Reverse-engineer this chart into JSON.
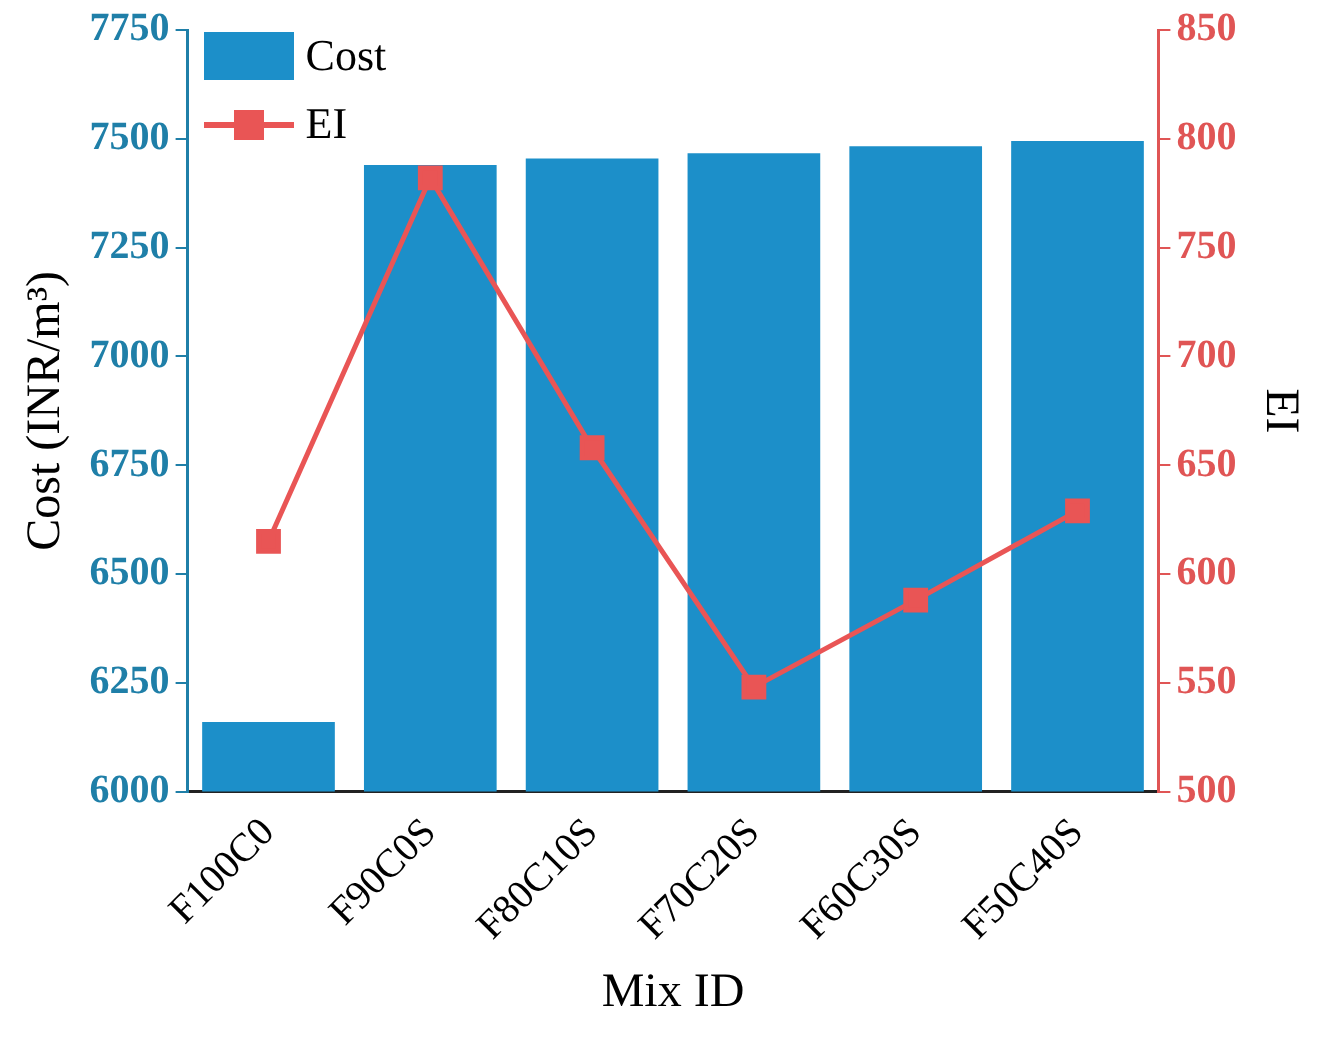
{
  "chart_data": {
    "type": "bar",
    "xlabel": "Mix ID",
    "ylabel": "Cost (INR/m³)",
    "y2label": "EI",
    "categories": [
      "F100C0",
      "F90C0S",
      "F80C10S",
      "F70C20S",
      "F60C30S",
      "F50C40S"
    ],
    "series": [
      {
        "name": "Cost",
        "color": "#1c8fc9",
        "values": [
          6160,
          7440,
          7455,
          7467,
          7483,
          7495
        ]
      },
      {
        "name": "EI",
        "type": "line",
        "axis": "y2",
        "color": "#e95555",
        "marker": "square",
        "values": [
          615,
          782,
          658,
          548,
          588,
          629
        ]
      }
    ],
    "ylim": [
      6000,
      7750
    ],
    "yticks": [
      6000,
      6250,
      6500,
      6750,
      7000,
      7250,
      7500,
      7750
    ],
    "y2lim": [
      500,
      850
    ],
    "y2ticks": [
      500,
      550,
      600,
      650,
      700,
      750,
      800,
      850
    ],
    "legend": "top left",
    "grid": false
  }
}
